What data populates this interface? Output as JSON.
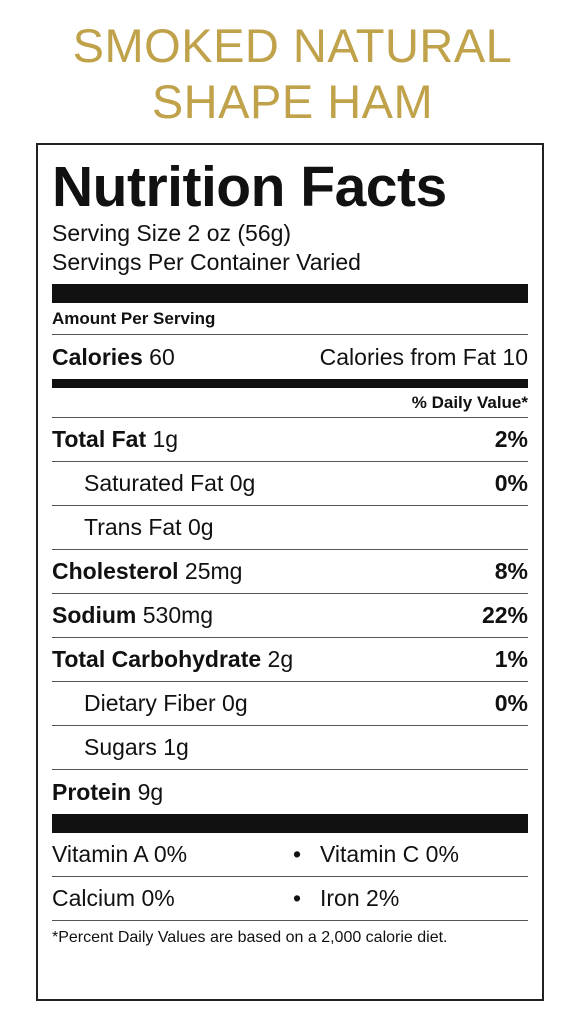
{
  "product": {
    "title_line1": "SMOKED NATURAL",
    "title_line2": "SHAPE HAM"
  },
  "colors": {
    "title_gold": "#BFA24A",
    "label_black": "#111111"
  },
  "label": {
    "heading": "Nutrition Facts",
    "serving_size": "Serving Size 2 oz (56g)",
    "servings_per_container": "Servings Per Container Varied",
    "amount_per_serving": "Amount Per Serving",
    "calories": {
      "label": "Calories",
      "value": "60"
    },
    "calories_from_fat": "Calories from Fat 10",
    "daily_value_header": "% Daily Value*",
    "nutrients": [
      {
        "name": "Total Fat",
        "amount": "1g",
        "dv": "2%",
        "bold": true
      },
      {
        "name": "Saturated Fat",
        "amount": "0g",
        "dv": "0%",
        "bold": false
      },
      {
        "name": "Trans Fat",
        "amount": "0g",
        "dv": "",
        "bold": false
      },
      {
        "name": "Cholesterol",
        "amount": "25mg",
        "dv": "8%",
        "bold": true
      },
      {
        "name": "Sodium",
        "amount": "530mg",
        "dv": "22%",
        "bold": true
      },
      {
        "name": "Total Carbohydrate",
        "amount": "2g",
        "dv": "1%",
        "bold": true
      },
      {
        "name": "Dietary Fiber",
        "amount": "0g",
        "dv": "0%",
        "bold": false
      },
      {
        "name": "Sugars",
        "amount": "1g",
        "dv": "",
        "bold": false
      },
      {
        "name": "Protein",
        "amount": "9g",
        "dv": "",
        "bold": true
      }
    ],
    "vitamins": [
      {
        "left": "Vitamin A 0%",
        "right": "Vitamin C 0%"
      },
      {
        "left": "Calcium 0%",
        "right": "Iron 2%"
      }
    ],
    "bullet": "•",
    "footnote": "*Percent Daily Values are based on a 2,000 calorie diet."
  }
}
